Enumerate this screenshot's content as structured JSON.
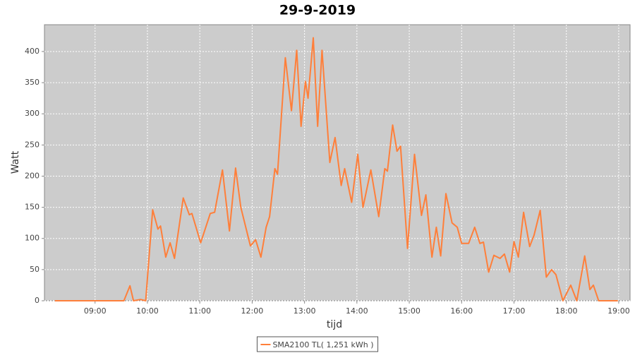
{
  "chart_data": {
    "type": "line",
    "title": "29-9-2019",
    "x_label": "tijd",
    "y_label": "Watt",
    "xlim": [
      "08:02",
      "19:13"
    ],
    "xticks": [
      "09:00",
      "10:00",
      "11:00",
      "12:00",
      "13:00",
      "14:00",
      "15:00",
      "16:00",
      "17:00",
      "18:00",
      "19:00"
    ],
    "ylim": [
      0,
      443
    ],
    "yticks": [
      0,
      50,
      100,
      150,
      200,
      250,
      300,
      350,
      400
    ],
    "grid": true,
    "x": [
      "08:14",
      "09:33",
      "09:40",
      "09:44",
      "09:52",
      "09:58",
      "10:06",
      "10:12",
      "10:15",
      "10:21",
      "10:26",
      "10:31",
      "10:41",
      "10:48",
      "10:51",
      "11:01",
      "11:12",
      "11:17",
      "11:26",
      "11:34",
      "11:41",
      "11:47",
      "11:58",
      "12:04",
      "12:10",
      "12:16",
      "12:20",
      "12:26",
      "12:29",
      "12:38",
      "12:45",
      "12:51",
      "12:56",
      "13:01",
      "13:04",
      "13:10",
      "13:15",
      "13:20",
      "13:29",
      "13:35",
      "13:42",
      "13:46",
      "13:54",
      "14:01",
      "14:07",
      "14:16",
      "14:25",
      "14:32",
      "14:35",
      "14:41",
      "14:46",
      "14:50",
      "14:58",
      "15:06",
      "15:14",
      "15:19",
      "15:26",
      "15:31",
      "15:36",
      "15:42",
      "15:49",
      "15:55",
      "16:00",
      "16:08",
      "16:15",
      "16:21",
      "16:25",
      "16:31",
      "16:37",
      "16:44",
      "16:49",
      "16:55",
      "17:00",
      "17:05",
      "17:11",
      "17:18",
      "17:23",
      "17:30",
      "17:37",
      "17:43",
      "17:48",
      "17:56",
      "18:05",
      "18:12",
      "18:21",
      "18:27",
      "18:31",
      "18:37",
      "18:59"
    ],
    "series": [
      {
        "name": "SMA2100 TL( 1,251 kWh )",
        "color": "#ff7f3a",
        "values": [
          0,
          0,
          24,
          0,
          2,
          0,
          146,
          115,
          120,
          70,
          93,
          68,
          165,
          138,
          140,
          93,
          140,
          142,
          210,
          112,
          213,
          150,
          88,
          98,
          70,
          118,
          135,
          212,
          203,
          390,
          305,
          402,
          280,
          352,
          325,
          422,
          280,
          402,
          222,
          262,
          185,
          212,
          158,
          235,
          150,
          210,
          135,
          212,
          208,
          282,
          240,
          248,
          84,
          235,
          137,
          170,
          70,
          118,
          72,
          172,
          125,
          118,
          92,
          92,
          118,
          92,
          94,
          46,
          73,
          68,
          75,
          46,
          95,
          70,
          142,
          87,
          105,
          145,
          38,
          50,
          42,
          0,
          25,
          0,
          72,
          18,
          25,
          0,
          0
        ]
      }
    ]
  }
}
